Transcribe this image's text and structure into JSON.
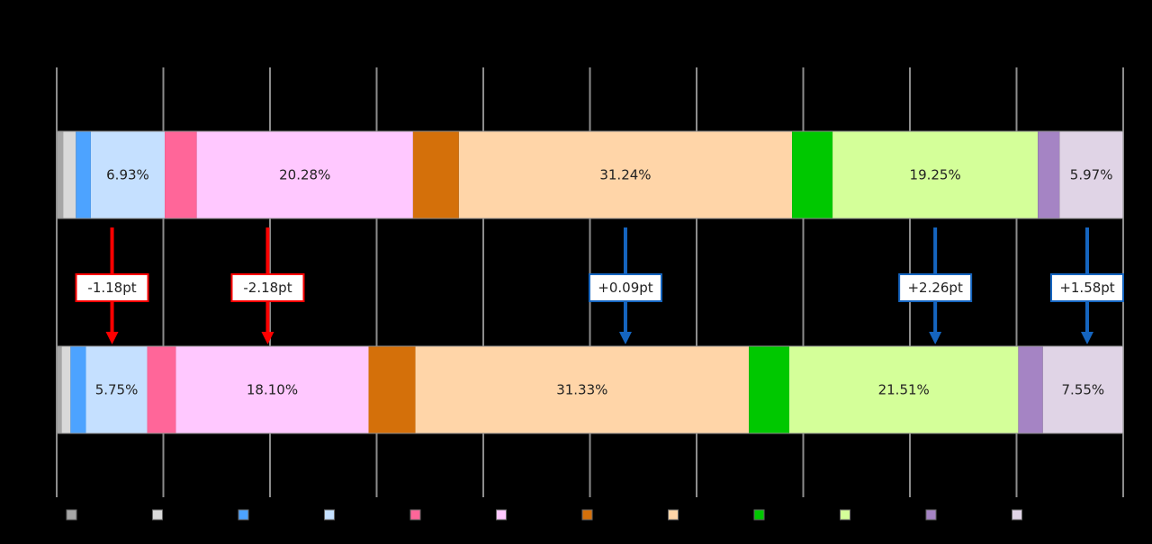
{
  "chart_data": {
    "type": "bar",
    "orientation": "horizontal",
    "stacked": "100%",
    "xlim": [
      0,
      100
    ],
    "grid": true,
    "legend_position": "bottom",
    "categories": [
      "",
      ""
    ],
    "series": [
      {
        "color": "#a6a6a6",
        "values": [
          0.6,
          0.45
        ]
      },
      {
        "color": "#d9d9d9",
        "values": [
          1.2,
          0.85
        ]
      },
      {
        "color": "#4da3ff",
        "values": [
          1.4,
          1.45
        ]
      },
      {
        "color": "#c5e0ff",
        "values": [
          6.93,
          5.75
        ]
      },
      {
        "color": "#ff6699",
        "values": [
          3.0,
          2.7
        ]
      },
      {
        "color": "#ffc8ff",
        "values": [
          20.28,
          18.1
        ]
      },
      {
        "color": "#d4700a",
        "values": [
          4.3,
          4.4
        ]
      },
      {
        "color": "#ffd5a8",
        "values": [
          31.24,
          31.33
        ]
      },
      {
        "color": "#00c800",
        "values": [
          3.8,
          3.8
        ]
      },
      {
        "color": "#d4ff99",
        "values": [
          19.25,
          21.51
        ]
      },
      {
        "color": "#a584c4",
        "values": [
          2.03,
          2.31
        ]
      },
      {
        "color": "#e0d4e6",
        "values": [
          5.97,
          7.55
        ]
      }
    ],
    "data_labels": [
      {
        "row": 0,
        "series": 3,
        "text": "6.93%"
      },
      {
        "row": 0,
        "series": 5,
        "text": "20.28%"
      },
      {
        "row": 0,
        "series": 7,
        "text": "31.24%"
      },
      {
        "row": 0,
        "series": 9,
        "text": "19.25%"
      },
      {
        "row": 0,
        "series": 11,
        "text": "5.97%"
      },
      {
        "row": 1,
        "series": 3,
        "text": "5.75%"
      },
      {
        "row": 1,
        "series": 5,
        "text": "18.10%"
      },
      {
        "row": 1,
        "series": 7,
        "text": "31.33%"
      },
      {
        "row": 1,
        "series": 9,
        "text": "21.51%"
      },
      {
        "row": 1,
        "series": 11,
        "text": "7.55%"
      }
    ],
    "annotations": [
      {
        "series": 3,
        "text": "-1.18pt",
        "direction": "decrease",
        "color": "#ff0000"
      },
      {
        "series": 5,
        "text": "-2.18pt",
        "direction": "decrease",
        "color": "#ff0000"
      },
      {
        "series": 7,
        "text": "+0.09pt",
        "direction": "increase",
        "color": "#1565c0"
      },
      {
        "series": 9,
        "text": "+2.26pt",
        "direction": "increase",
        "color": "#1565c0"
      },
      {
        "series": 11,
        "text": "+1.58pt",
        "direction": "increase",
        "color": "#1565c0"
      }
    ]
  }
}
